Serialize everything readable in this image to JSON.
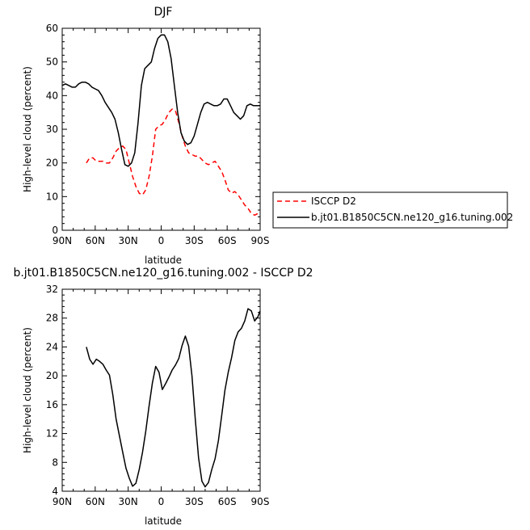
{
  "chart_data": [
    {
      "type": "line",
      "title": "DJF",
      "xlabel": "latitude",
      "ylabel": "High-level cloud (percent)",
      "xlim": [
        90,
        -90
      ],
      "ylim": [
        0,
        60
      ],
      "xticks": [
        90,
        60,
        30,
        0,
        -30,
        -60,
        -90
      ],
      "xtick_labels": [
        "90N",
        "60N",
        "30N",
        "0",
        "30S",
        "60S",
        "90S"
      ],
      "yticks": [
        0,
        10,
        20,
        30,
        40,
        50,
        60
      ],
      "ytick_labels": [
        "0",
        "10",
        "20",
        "30",
        "40",
        "50",
        "60"
      ],
      "grid": false,
      "legend_position": "right",
      "series": [
        {
          "name": "ISCCP D2",
          "color": "#ff0000",
          "dash": "dashed",
          "x": [
            68,
            65,
            62,
            59,
            56,
            53,
            50,
            47,
            44,
            41,
            38,
            35,
            32,
            29,
            26,
            23,
            20,
            17,
            14,
            11,
            8,
            5,
            2,
            -1,
            -4,
            -7,
            -10,
            -13,
            -16,
            -19,
            -22,
            -25,
            -28,
            -31,
            -34,
            -37,
            -40,
            -43,
            -46,
            -49,
            -52,
            -55,
            -58,
            -61,
            -64,
            -67,
            -70,
            -73,
            -76,
            -79,
            -82,
            -85,
            -88
          ],
          "values": [
            20,
            21.5,
            21.5,
            20.5,
            20.5,
            20.5,
            20,
            20,
            21.5,
            23.5,
            24.5,
            25,
            24,
            20,
            16,
            13,
            11,
            10.5,
            12,
            16,
            22,
            30,
            31,
            31.5,
            33,
            35,
            36,
            35.5,
            32,
            28,
            25,
            23,
            22.5,
            22,
            22,
            21,
            20,
            19.5,
            20,
            20.5,
            19,
            17.5,
            15,
            12,
            11,
            11.5,
            10.5,
            9,
            7.5,
            6.5,
            5,
            4.5,
            5
          ]
        },
        {
          "name": "b.jt01.B1850C5CN.ne120_g16.tuning.002",
          "color": "#000000",
          "dash": "solid",
          "x": [
            90,
            87,
            84,
            81,
            78,
            75,
            72,
            69,
            66,
            63,
            60,
            57,
            54,
            51,
            48,
            45,
            42,
            39,
            36,
            33,
            30,
            27,
            24,
            21,
            18,
            15,
            12,
            9,
            6,
            3,
            0,
            -3,
            -6,
            -9,
            -12,
            -15,
            -18,
            -21,
            -24,
            -27,
            -30,
            -33,
            -36,
            -39,
            -42,
            -45,
            -48,
            -51,
            -54,
            -57,
            -60,
            -63,
            -66,
            -69,
            -72,
            -75,
            -78,
            -81,
            -84,
            -87,
            -90
          ],
          "values": [
            43,
            43.5,
            43,
            42.5,
            42.5,
            43.5,
            44,
            44,
            43.5,
            42.5,
            42,
            41.5,
            40,
            38,
            36.5,
            35,
            33,
            29,
            24,
            19.5,
            19,
            20,
            23,
            32,
            43,
            48,
            49,
            50,
            54,
            57,
            58,
            58,
            56,
            51,
            43,
            35,
            29,
            26.5,
            25.5,
            26,
            28,
            31.5,
            35,
            37.5,
            38,
            37.5,
            37,
            37,
            37.5,
            39,
            39,
            37,
            35,
            34,
            33,
            34,
            37,
            37.5,
            37,
            37,
            37
          ]
        }
      ]
    },
    {
      "type": "line",
      "title": "b.jt01.B1850C5CN.ne120_g16.tuning.002 - ISCCP D2",
      "xlabel": "latitude",
      "ylabel": "High-level cloud (percent)",
      "xlim": [
        90,
        -90
      ],
      "ylim": [
        4,
        32
      ],
      "xticks": [
        90,
        60,
        30,
        0,
        -30,
        -60,
        -90
      ],
      "xtick_labels": [
        "90N",
        "60N",
        "30N",
        "0",
        "30S",
        "60S",
        "90S"
      ],
      "yticks": [
        4,
        8,
        12,
        16,
        20,
        24,
        28,
        32
      ],
      "ytick_labels": [
        "4",
        "8",
        "12",
        "16",
        "20",
        "24",
        "28",
        "32"
      ],
      "grid": false,
      "series": [
        {
          "color": "#000000",
          "dash": "solid",
          "x": [
            68,
            65,
            62,
            59,
            56,
            53,
            50,
            47,
            44,
            41,
            38,
            35,
            32,
            29,
            26,
            23,
            20,
            17,
            14,
            11,
            8,
            5,
            2,
            -1,
            -4,
            -7,
            -10,
            -13,
            -16,
            -19,
            -22,
            -25,
            -28,
            -31,
            -34,
            -37,
            -40,
            -43,
            -46,
            -49,
            -52,
            -55,
            -58,
            -61,
            -64,
            -67,
            -70,
            -73,
            -76,
            -79,
            -82,
            -85,
            -88,
            -90
          ],
          "values": [
            24,
            22.3,
            21.6,
            22.3,
            22,
            21.6,
            20.8,
            20.1,
            17.4,
            14,
            11.7,
            9.4,
            7.2,
            5.8,
            4.7,
            5.1,
            7,
            9.4,
            12.3,
            15.8,
            19,
            21.3,
            20.5,
            18.1,
            18.9,
            19.8,
            20.8,
            21.5,
            22.4,
            24.2,
            25.5,
            24.1,
            20,
            14,
            8.6,
            5.4,
            4.6,
            5.2,
            7,
            8.5,
            11,
            14.5,
            18,
            20.5,
            22.5,
            24.9,
            26.1,
            26.6,
            27.6,
            29.3,
            29,
            27.6,
            28.2,
            29
          ]
        }
      ]
    }
  ],
  "legend": {
    "entries": [
      "ISCCP D2",
      "b.jt01.B1850C5CN.ne120_g16.tuning.002"
    ]
  }
}
